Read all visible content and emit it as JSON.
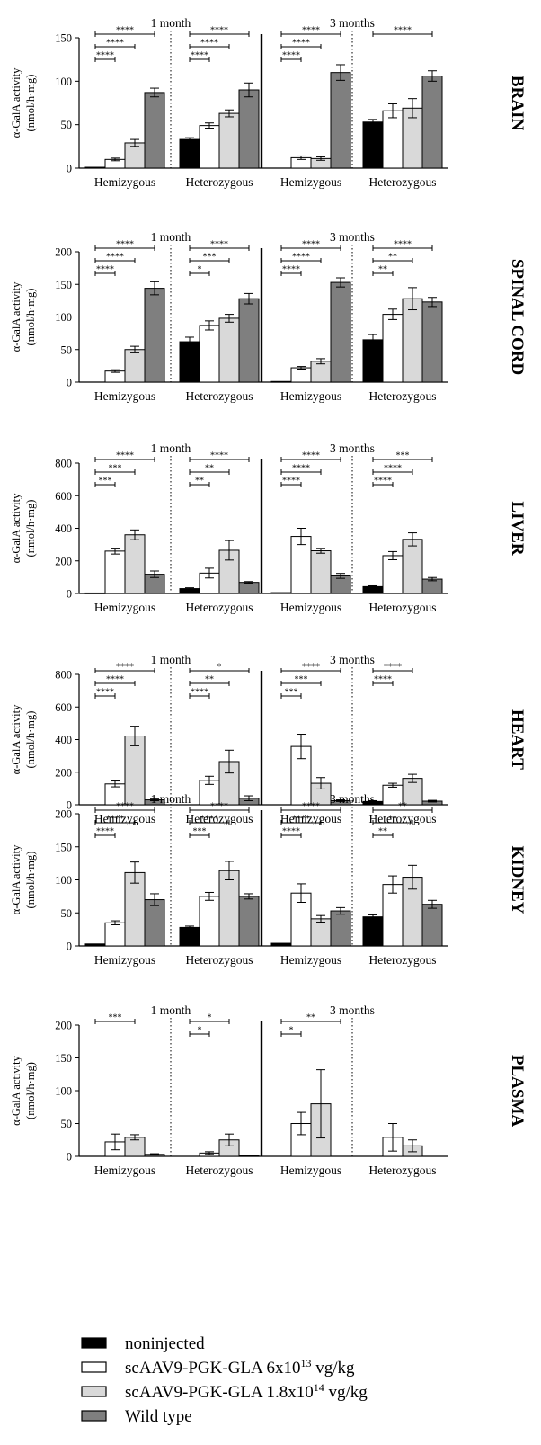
{
  "legend": {
    "items": [
      {
        "label": "noninjected",
        "color": "#000000"
      },
      {
        "label": "scAAV9-PGK-GLA 6x10",
        "sup": "13",
        "suffix": " vg/kg",
        "color": "#ffffff"
      },
      {
        "label": "scAAV9-PGK-GLA 1.8x10",
        "sup": "14",
        "suffix": " vg/kg",
        "color": "#d9d9d9"
      },
      {
        "label": "Wild type",
        "color": "#7f7f7f"
      }
    ]
  },
  "chart_data": [
    {
      "type": "bar",
      "panel_label": "BRAIN",
      "ylabel": [
        "α-GalA activity",
        "(nmol/h·mg)"
      ],
      "ylim": [
        0,
        150
      ],
      "yticks": [
        0,
        50,
        100,
        150
      ],
      "time_labels": [
        "1 month",
        "3 months"
      ],
      "categories": [
        "Hemizygous",
        "Heterozygous",
        "Hemizygous",
        "Heterozygous"
      ],
      "series": [
        {
          "values": [
            1,
            33,
            null,
            53
          ],
          "errors": [
            0,
            2,
            null,
            3
          ]
        },
        {
          "values": [
            10,
            49,
            12,
            66
          ],
          "errors": [
            1.5,
            3,
            2,
            8
          ]
        },
        {
          "values": [
            29,
            63,
            11,
            69
          ],
          "errors": [
            4,
            4,
            2,
            11
          ]
        },
        {
          "values": [
            87,
            90,
            110,
            106
          ],
          "errors": [
            5,
            8,
            9,
            6
          ]
        }
      ],
      "significance": [
        [
          {
            "to": 3,
            "label": "****"
          },
          {
            "to": 2,
            "label": "****"
          },
          {
            "to": 1,
            "label": "****"
          }
        ],
        [
          {
            "to": 3,
            "label": "****"
          },
          {
            "to": 2,
            "label": "****"
          },
          {
            "to": 1,
            "label": "****"
          }
        ],
        [
          {
            "to": 3,
            "label": "****"
          },
          {
            "to": 2,
            "label": "****"
          },
          {
            "to": 1,
            "label": "****"
          }
        ],
        [
          {
            "to": 3,
            "label": "****"
          }
        ]
      ]
    },
    {
      "type": "bar",
      "panel_label": "SPINAL CORD",
      "ylabel": [
        "α-GalA activity",
        "(nmol/h·mg)"
      ],
      "ylim": [
        0,
        200
      ],
      "yticks": [
        0,
        50,
        100,
        150,
        200
      ],
      "time_labels": [
        "1 month",
        "3 months"
      ],
      "categories": [
        "Hemizygous",
        "Heterozygous",
        "Hemizygous",
        "Heterozygous"
      ],
      "series": [
        {
          "values": [
            null,
            62,
            1,
            65
          ],
          "errors": [
            null,
            7,
            0,
            8
          ]
        },
        {
          "values": [
            17,
            87,
            22,
            104
          ],
          "errors": [
            2,
            7,
            2,
            8
          ]
        },
        {
          "values": [
            50,
            98,
            32,
            128
          ],
          "errors": [
            5,
            6,
            4,
            17
          ]
        },
        {
          "values": [
            144,
            128,
            153,
            123
          ],
          "errors": [
            10,
            8,
            7,
            7
          ]
        }
      ],
      "significance": [
        [
          {
            "to": 3,
            "label": "****"
          },
          {
            "to": 2,
            "label": "****"
          },
          {
            "to": 1,
            "label": "****"
          }
        ],
        [
          {
            "to": 3,
            "label": "****"
          },
          {
            "to": 2,
            "label": "***"
          },
          {
            "to": 1,
            "label": "*"
          }
        ],
        [
          {
            "to": 3,
            "label": "****"
          },
          {
            "to": 2,
            "label": "****"
          },
          {
            "to": 1,
            "label": "****"
          }
        ],
        [
          {
            "to": 3,
            "label": "****"
          },
          {
            "to": 2,
            "label": "**"
          },
          {
            "to": 1,
            "label": "**"
          }
        ]
      ]
    },
    {
      "type": "bar",
      "panel_label": "LIVER",
      "ylabel": [
        "α-GalA activity",
        "(nmol/h·mg)"
      ],
      "ylim": [
        0,
        800
      ],
      "yticks": [
        0,
        200,
        400,
        600,
        800
      ],
      "time_labels": [
        "1 month",
        "3 months"
      ],
      "categories": [
        "Hemizygous",
        "Heterozygous",
        "Hemizygous",
        "Heterozygous"
      ],
      "series": [
        {
          "values": [
            3,
            30,
            5,
            42
          ],
          "errors": [
            0,
            5,
            0,
            5
          ]
        },
        {
          "values": [
            260,
            125,
            350,
            232
          ],
          "errors": [
            18,
            30,
            50,
            25
          ]
        },
        {
          "values": [
            360,
            265,
            262,
            332
          ],
          "errors": [
            30,
            60,
            15,
            40
          ]
        },
        {
          "values": [
            118,
            68,
            108,
            88
          ],
          "errors": [
            20,
            5,
            15,
            10
          ]
        }
      ],
      "significance": [
        [
          {
            "to": 3,
            "label": "****"
          },
          {
            "to": 2,
            "label": "***"
          },
          {
            "to": 1,
            "label": "***"
          }
        ],
        [
          {
            "to": 3,
            "label": "****"
          },
          {
            "to": 2,
            "label": "**"
          },
          {
            "to": 1,
            "label": "**"
          }
        ],
        [
          {
            "to": 3,
            "label": "****"
          },
          {
            "to": 2,
            "label": "****"
          },
          {
            "to": 1,
            "label": "****"
          }
        ],
        [
          {
            "to": 3,
            "label": "***"
          },
          {
            "to": 2,
            "label": "****"
          },
          {
            "to": 1,
            "label": "****"
          }
        ]
      ]
    },
    {
      "type": "bar",
      "panel_label": "HEART",
      "ylabel": [
        "α-GalA activity",
        "(nmol/h·mg)"
      ],
      "ylim": [
        0,
        800
      ],
      "yticks": [
        0,
        200,
        400,
        600,
        800
      ],
      "time_labels": [
        "1 month",
        "3 months"
      ],
      "categories": [
        "Hemizygous",
        "Heterozygous",
        "Hemizygous",
        "Heterozygous"
      ],
      "series": [
        {
          "values": [
            null,
            null,
            null,
            20
          ],
          "errors": [
            null,
            null,
            null,
            5
          ]
        },
        {
          "values": [
            128,
            150,
            358,
            120
          ],
          "errors": [
            18,
            25,
            75,
            12
          ]
        },
        {
          "values": [
            422,
            265,
            132,
            162
          ],
          "errors": [
            60,
            70,
            35,
            25
          ]
        },
        {
          "values": [
            30,
            40,
            25,
            22
          ],
          "errors": [
            5,
            15,
            5,
            5
          ]
        }
      ],
      "significance": [
        [
          {
            "to": 3,
            "label": "****"
          },
          {
            "to": 2,
            "label": "****"
          },
          {
            "to": 1,
            "label": "****"
          }
        ],
        [
          {
            "to": 3,
            "label": "*"
          },
          {
            "to": 2,
            "label": "**"
          },
          {
            "to": 1,
            "label": "****"
          }
        ],
        [
          {
            "to": 3,
            "label": "****"
          },
          {
            "to": 2,
            "label": "***"
          },
          {
            "to": 1,
            "label": "***"
          }
        ],
        [
          {
            "to": 2,
            "label": "****"
          },
          {
            "to": 1,
            "label": "****"
          }
        ]
      ]
    },
    {
      "type": "bar",
      "panel_label": "KIDNEY",
      "ylabel": [
        "α-GalA activity",
        "(nmol/h·mg)"
      ],
      "ylim": [
        0,
        200
      ],
      "yticks": [
        0,
        50,
        100,
        150,
        200
      ],
      "time_labels": [
        "1 month",
        "3 months"
      ],
      "categories": [
        "Hemizygous",
        "Heterozygous",
        "Hemizygous",
        "Heterozygous"
      ],
      "series": [
        {
          "values": [
            3,
            28,
            4,
            44
          ],
          "errors": [
            0,
            2,
            0,
            3
          ]
        },
        {
          "values": [
            35,
            75,
            80,
            93
          ],
          "errors": [
            3,
            6,
            14,
            13
          ]
        },
        {
          "values": [
            111,
            114,
            41,
            104
          ],
          "errors": [
            16,
            14,
            5,
            18
          ]
        },
        {
          "values": [
            70,
            75,
            53,
            63
          ],
          "errors": [
            9,
            4,
            5,
            6
          ]
        }
      ],
      "significance": [
        [
          {
            "to": 3,
            "label": "****"
          },
          {
            "to": 2,
            "label": "****"
          },
          {
            "to": 1,
            "label": "****"
          }
        ],
        [
          {
            "to": 3,
            "label": "****"
          },
          {
            "to": 2,
            "label": "****"
          },
          {
            "to": 1,
            "label": "***"
          }
        ],
        [
          {
            "to": 3,
            "label": "****"
          },
          {
            "to": 2,
            "label": "****"
          },
          {
            "to": 1,
            "label": "****"
          }
        ],
        [
          {
            "to": 3,
            "label": "**"
          },
          {
            "to": 2,
            "label": "**"
          },
          {
            "to": 1,
            "label": "**"
          }
        ]
      ]
    },
    {
      "type": "bar",
      "panel_label": "PLASMA",
      "ylabel": [
        "α-GalA activity",
        "(nmol/h·mg)"
      ],
      "ylim": [
        0,
        200
      ],
      "yticks": [
        0,
        50,
        100,
        150,
        200
      ],
      "time_labels": [
        "1 month",
        "3 months"
      ],
      "categories": [
        "Hemizygous",
        "Heterozygous",
        "Hemizygous",
        "Heterozygous"
      ],
      "series": [
        {
          "values": [
            null,
            null,
            null,
            null
          ],
          "errors": [
            null,
            null,
            null,
            null
          ]
        },
        {
          "values": [
            22,
            5,
            50,
            29
          ],
          "errors": [
            12,
            2,
            17,
            21
          ]
        },
        {
          "values": [
            29,
            25,
            80,
            16
          ],
          "errors": [
            4,
            9,
            52,
            9
          ]
        },
        {
          "values": [
            3,
            1,
            null,
            null
          ],
          "errors": [
            1,
            0,
            null,
            null
          ]
        }
      ],
      "significance": [
        [
          {
            "to": 2,
            "label": "***"
          }
        ],
        [
          {
            "to": 2,
            "label": "*"
          },
          {
            "to": 1,
            "label": "*"
          }
        ],
        [
          {
            "to": 3,
            "label": "**"
          },
          {
            "to": 1,
            "label": "*"
          }
        ],
        []
      ]
    }
  ]
}
